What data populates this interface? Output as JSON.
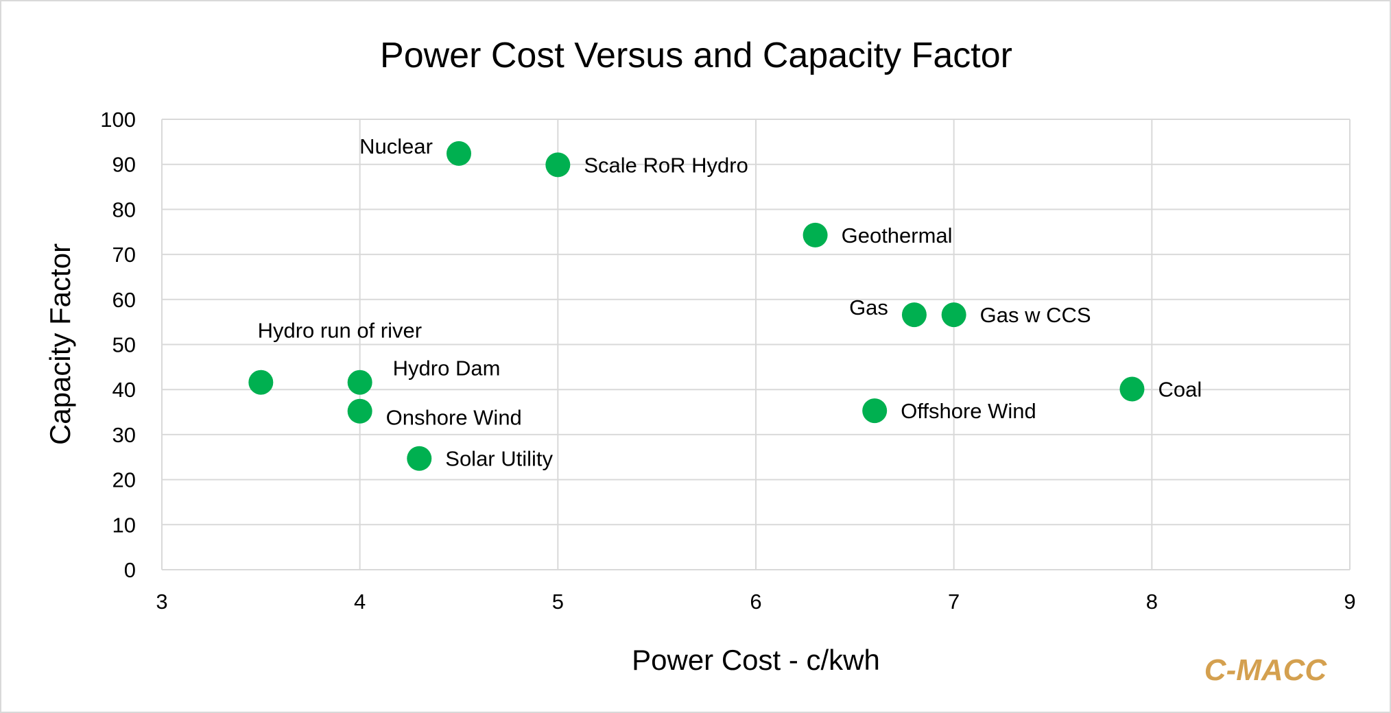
{
  "chart_data": {
    "type": "scatter",
    "title": "Power Cost Versus and Capacity Factor",
    "xlabel": "Power Cost - c/kwh",
    "ylabel": "Capacity Factor",
    "xlim": [
      3,
      9
    ],
    "ylim": [
      0,
      100
    ],
    "xticks": [
      3,
      4,
      5,
      6,
      7,
      8,
      9
    ],
    "yticks": [
      0,
      10,
      20,
      30,
      40,
      50,
      60,
      70,
      80,
      90,
      100
    ],
    "grid": true,
    "marker_color": "#00B050",
    "points": [
      {
        "label": "Nuclear",
        "x": 4.5,
        "y": 92.4,
        "label_pos": "left"
      },
      {
        "label": "Scale RoR Hydro",
        "x": 5.0,
        "y": 89.9,
        "label_pos": "right"
      },
      {
        "label": "Geothermal",
        "x": 6.3,
        "y": 74.3,
        "label_pos": "right"
      },
      {
        "label": "Gas",
        "x": 6.8,
        "y": 56.6,
        "label_pos": "left"
      },
      {
        "label": "Gas w CCS",
        "x": 7.0,
        "y": 56.6,
        "label_pos": "right"
      },
      {
        "label": "Hydro run of river",
        "x": 3.5,
        "y": 41.6,
        "label_pos": "above"
      },
      {
        "label": "Hydro Dam",
        "x": 4.0,
        "y": 41.6,
        "label_pos": "above-right"
      },
      {
        "label": "Onshore Wind",
        "x": 4.0,
        "y": 35.2,
        "label_pos": "below-right"
      },
      {
        "label": "Solar Utility",
        "x": 4.3,
        "y": 24.7,
        "label_pos": "right"
      },
      {
        "label": "Offshore Wind",
        "x": 6.6,
        "y": 35.3,
        "label_pos": "right"
      },
      {
        "label": "Coal",
        "x": 7.9,
        "y": 40.1,
        "label_pos": "right"
      }
    ]
  },
  "watermark": "C-MACC"
}
